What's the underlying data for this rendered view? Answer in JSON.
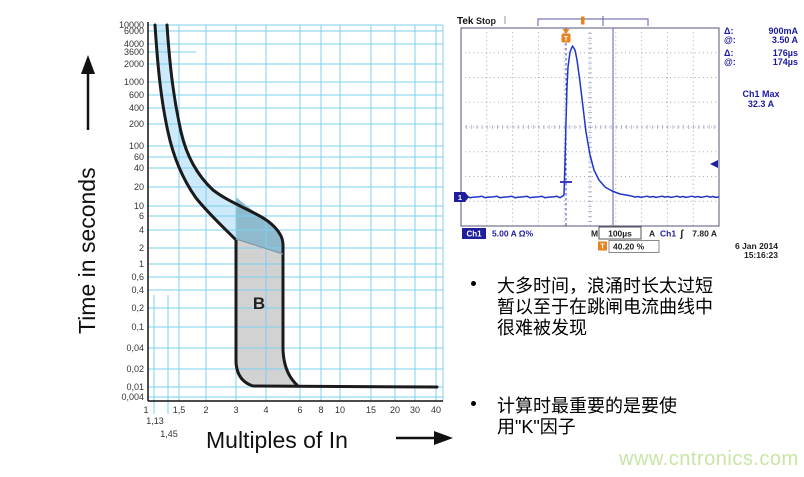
{
  "chart_data": [
    {
      "type": "line",
      "title": "",
      "xlabel": "Multiples of In",
      "ylabel": "Time in seconds",
      "x_scale": "log",
      "y_scale": "log",
      "x_range": [
        1,
        40
      ],
      "y_range": [
        0.004,
        10000
      ],
      "x_ticks": [
        "1",
        "1,5",
        "2",
        "3",
        "4",
        "6",
        "8",
        "10",
        "15",
        "20",
        "30",
        "40"
      ],
      "x_sub_ticks": [
        "1,13",
        "1,45"
      ],
      "y_ticks": [
        "10000",
        "6000",
        "4000",
        "3600",
        "2000",
        "1000",
        "600",
        "400",
        "200",
        "100",
        "60",
        "40",
        "20",
        "10",
        "6",
        "4",
        "2",
        "1",
        "0,6",
        "0,4",
        "0,2",
        "0,1",
        "0,04",
        "0,02",
        "0,01",
        "0,004"
      ],
      "curve_label": "B",
      "special_y_gridline": "3600",
      "series": [
        {
          "name": "lower trip boundary",
          "points": [
            [
              1.13,
              10000
            ],
            [
              1.2,
              1000
            ],
            [
              1.35,
              100
            ],
            [
              1.6,
              20
            ],
            [
              2.1,
              8
            ],
            [
              2.7,
              4
            ],
            [
              3,
              3
            ],
            [
              3,
              0.015
            ],
            [
              3.4,
              0.01
            ],
            [
              40,
              0.01
            ]
          ]
        },
        {
          "name": "upper trip boundary",
          "points": [
            [
              1.45,
              10000
            ],
            [
              1.6,
              1000
            ],
            [
              1.95,
              100
            ],
            [
              2.6,
              20
            ],
            [
              3.6,
              8
            ],
            [
              4.6,
              4
            ],
            [
              5,
              2
            ],
            [
              5,
              0.02
            ],
            [
              5.6,
              0.01
            ]
          ]
        }
      ],
      "regions": [
        {
          "name": "thermal trip band",
          "color": "#cdeafa"
        },
        {
          "name": "thermal-instantaneous overlap",
          "color": "#8fbacd"
        },
        {
          "name": "instantaneous trip zone B (3-5 x In)",
          "color": "#d2d2d2",
          "label": "B"
        }
      ]
    },
    {
      "type": "line",
      "title": "surge current waveform",
      "x_units": "µs",
      "y_units": "A",
      "timebase_per_div": "100µs",
      "ch1_scale_per_div": "5.00 A",
      "baseline_a": 7.0,
      "peak_a": 32.3,
      "surge_width_us": 176,
      "trigger_position_pct": 40.2
    }
  ],
  "chart": {
    "y_axis_label": "Time in seconds",
    "x_axis_label": "Multiples of In",
    "curve_label": "B"
  },
  "scope": {
    "brand": "Tek",
    "status": "Stop",
    "meas": {
      "d1_label": "Δ:",
      "d1_value": "900mA",
      "a1_label": "@:",
      "a1_value": "3.50 A",
      "d2_label": "Δ:",
      "d2_value": "176µs",
      "a2_label": "@:",
      "a2_value": "174µs",
      "ch1max_label": "Ch1 Max",
      "ch1max_value": "32.3 A"
    },
    "ch1_badge": "Ch1",
    "ch1_scale": "5.00 A Ω%",
    "timebase_m": "M",
    "timebase": "100µs",
    "acq_a": "A",
    "trig_src": "Ch1",
    "trig_slope": "ʃ",
    "trig_level": "7.80 A",
    "trig_pos_icon": "T",
    "trig_pos": "40.20 %",
    "date": "6 Jan  2014",
    "time": "15:16:23",
    "ch_marker": "1"
  },
  "bullets": [
    "大多时间，浪涌时长太过短暂以至于在跳闸电流曲线中很难被发现",
    "计算时最重要的是要使用\"K\"因子"
  ],
  "watermark": "www.cntronics.com"
}
